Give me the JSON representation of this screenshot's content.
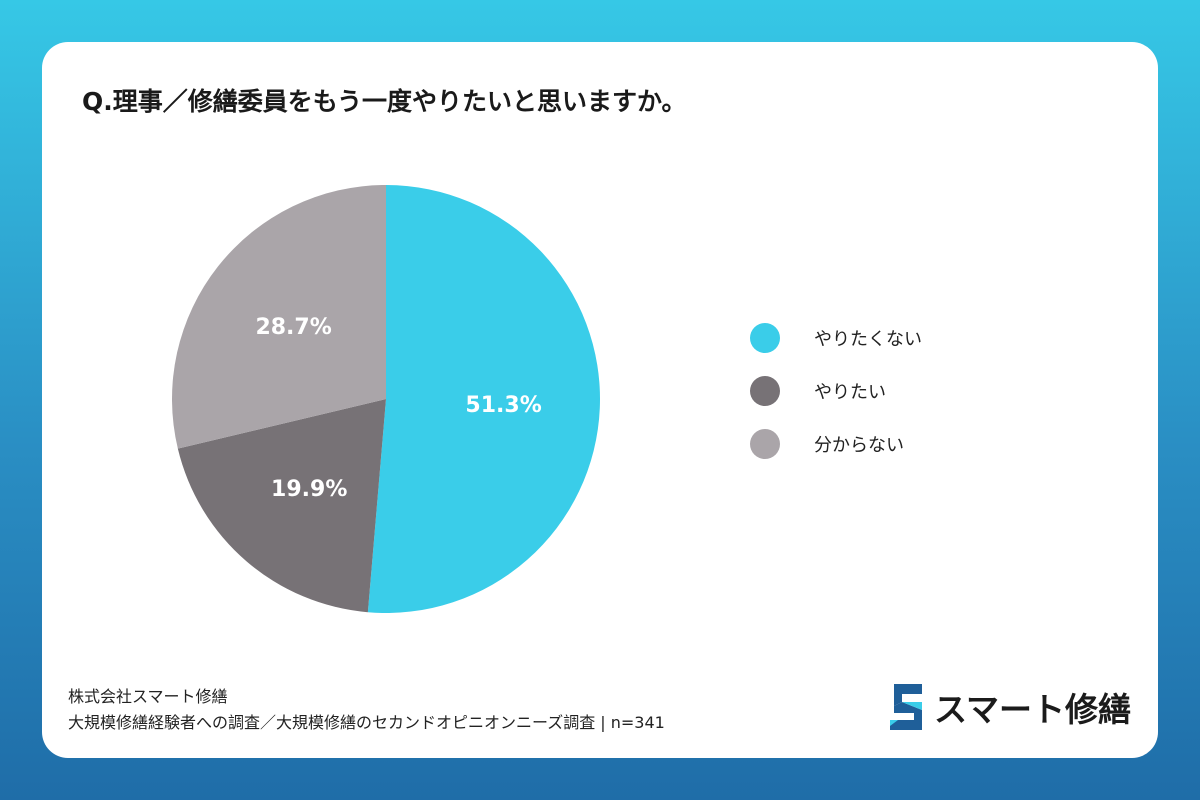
{
  "title": "Q.理事／修繕委員をもう一度やりたいと思いますか。",
  "chart_data": {
    "type": "pie",
    "title": "Q.理事／修繕委員をもう一度やりたいと思いますか。",
    "slices": [
      {
        "label": "やりたくない",
        "value": 51.3,
        "display": "51.3%",
        "color": "#3acde9"
      },
      {
        "label": "やりたい",
        "value": 19.9,
        "display": "19.9%",
        "color": "#777276"
      },
      {
        "label": "分からない",
        "value": 28.7,
        "display": "28.7%",
        "color": "#aaa5a9"
      }
    ],
    "start": "top",
    "direction": "clockwise",
    "legend_position": "right"
  },
  "footer": {
    "company": "株式会社スマート修繕",
    "source": "大規模修繕経験者への調査／大規模修繕のセカンドオピニオンニーズ調査 | n=341"
  },
  "logo": {
    "text": "スマート修繕",
    "icon": "s-logo-icon",
    "colors": [
      "#1f5f99",
      "#3acde9"
    ]
  },
  "colors": {
    "background_top": "#36c8e6",
    "background_bottom": "#1f6da8",
    "card": "#ffffff",
    "label_text": "#ffffff"
  }
}
